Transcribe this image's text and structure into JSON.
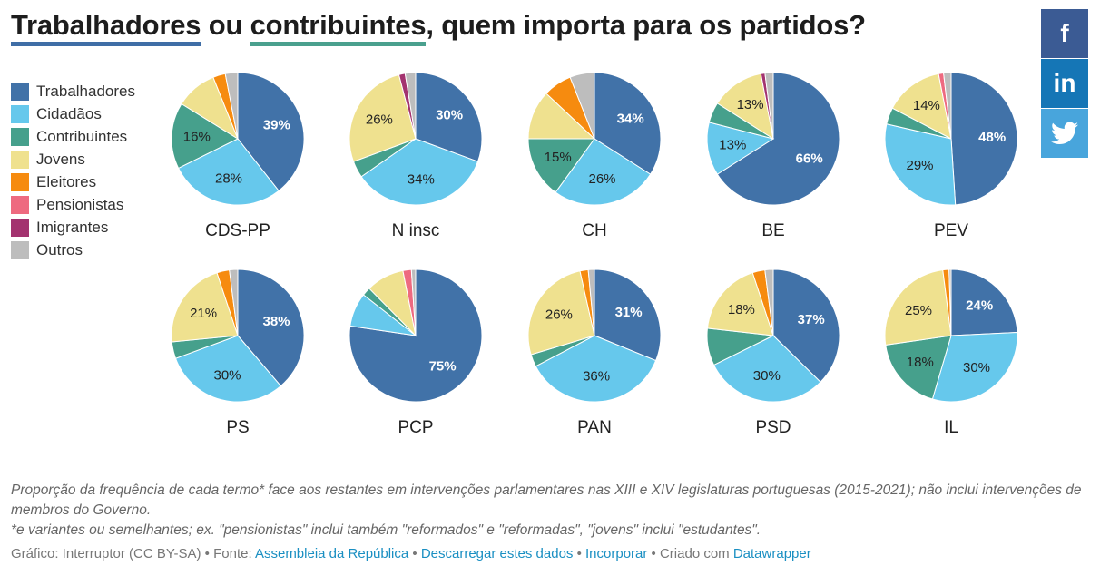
{
  "title": {
    "part1": "Trabalhadores",
    "part2": " ou ",
    "part3": "contribuintes",
    "part4": ", quem importa para os partidos?"
  },
  "legend": [
    {
      "label": "Trabalhadores",
      "color": "#4172a8"
    },
    {
      "label": "Cidadãos",
      "color": "#66c8ec"
    },
    {
      "label": "Contribuintes",
      "color": "#46a08c"
    },
    {
      "label": "Jovens",
      "color": "#efe18f"
    },
    {
      "label": "Eleitores",
      "color": "#f68b0f"
    },
    {
      "label": "Pensionistas",
      "color": "#ee6a80"
    },
    {
      "label": "Imigrantes",
      "color": "#a3336f"
    },
    {
      "label": "Outros",
      "color": "#bdbdbd"
    }
  ],
  "social": {
    "facebook": "f",
    "linkedin": "in",
    "twitter": "twitter-bird-icon"
  },
  "chart_data": [
    {
      "type": "pie",
      "title": "CDS-PP",
      "categories": [
        "Trabalhadores",
        "Cidadãos",
        "Contribuintes",
        "Jovens",
        "Eleitores",
        "Pensionistas",
        "Imigrantes",
        "Outros"
      ],
      "values": [
        39,
        28,
        16,
        10,
        3,
        0,
        0,
        3
      ],
      "labels": [
        "39%",
        "28%",
        "16%",
        "",
        "",
        "",
        "",
        ""
      ]
    },
    {
      "type": "pie",
      "title": "N insc",
      "categories": [
        "Trabalhadores",
        "Cidadãos",
        "Contribuintes",
        "Jovens",
        "Eleitores",
        "Pensionistas",
        "Imigrantes",
        "Outros"
      ],
      "values": [
        30,
        34,
        4,
        26,
        0,
        0,
        1.5,
        2.5
      ],
      "labels": [
        "30%",
        "34%",
        "",
        "26%",
        "",
        "",
        "",
        ""
      ]
    },
    {
      "type": "pie",
      "title": "CH",
      "categories": [
        "Trabalhadores",
        "Cidadãos",
        "Contribuintes",
        "Jovens",
        "Eleitores",
        "Pensionistas",
        "Imigrantes",
        "Outros"
      ],
      "values": [
        34,
        26,
        15,
        12,
        7,
        0,
        0,
        6
      ],
      "labels": [
        "34%",
        "26%",
        "15%",
        "",
        "",
        "",
        "",
        ""
      ]
    },
    {
      "type": "pie",
      "title": "BE",
      "categories": [
        "Trabalhadores",
        "Cidadãos",
        "Contribuintes",
        "Jovens",
        "Eleitores",
        "Pensionistas",
        "Imigrantes",
        "Outros"
      ],
      "values": [
        66,
        13,
        5,
        13,
        0,
        0,
        1,
        2
      ],
      "labels": [
        "66%",
        "13%",
        "",
        "13%",
        "",
        "",
        "",
        ""
      ]
    },
    {
      "type": "pie",
      "title": "PEV",
      "categories": [
        "Trabalhadores",
        "Cidadãos",
        "Contribuintes",
        "Jovens",
        "Eleitores",
        "Pensionistas",
        "Imigrantes",
        "Outros"
      ],
      "values": [
        48,
        29,
        4,
        14,
        0,
        1.2,
        0,
        1.8
      ],
      "labels": [
        "48%",
        "29%",
        "",
        "14%",
        "",
        "",
        "",
        ""
      ]
    },
    {
      "type": "pie",
      "title": "PS",
      "categories": [
        "Trabalhadores",
        "Cidadãos",
        "Contribuintes",
        "Jovens",
        "Eleitores",
        "Pensionistas",
        "Imigrantes",
        "Outros"
      ],
      "values": [
        38,
        30,
        4,
        21,
        3,
        0,
        0,
        2
      ],
      "labels": [
        "38%",
        "30%",
        "",
        "21%",
        "",
        "",
        "",
        ""
      ]
    },
    {
      "type": "pie",
      "title": "PCP",
      "categories": [
        "Trabalhadores",
        "Cidadãos",
        "Contribuintes",
        "Jovens",
        "Eleitores",
        "Pensionistas",
        "Imigrantes",
        "Outros"
      ],
      "values": [
        75,
        8,
        2,
        9,
        0,
        2,
        0,
        1
      ],
      "labels": [
        "75%",
        "",
        "",
        "",
        "",
        "",
        "",
        ""
      ]
    },
    {
      "type": "pie",
      "title": "PAN",
      "categories": [
        "Trabalhadores",
        "Cidadãos",
        "Contribuintes",
        "Jovens",
        "Eleitores",
        "Pensionistas",
        "Imigrantes",
        "Outros"
      ],
      "values": [
        31,
        36,
        3,
        26,
        2,
        0,
        0,
        1.5
      ],
      "labels": [
        "31%",
        "36%",
        "",
        "26%",
        "",
        "",
        "",
        ""
      ]
    },
    {
      "type": "pie",
      "title": "PSD",
      "categories": [
        "Trabalhadores",
        "Cidadãos",
        "Contribuintes",
        "Jovens",
        "Eleitores",
        "Pensionistas",
        "Imigrantes",
        "Outros"
      ],
      "values": [
        37,
        30,
        9,
        18,
        3,
        0,
        0,
        2
      ],
      "labels": [
        "37%",
        "30%",
        "",
        "18%",
        "",
        "",
        "",
        ""
      ]
    },
    {
      "type": "pie",
      "title": "IL",
      "categories": [
        "Trabalhadores",
        "Cidadãos",
        "Contribuintes",
        "Jovens",
        "Eleitores",
        "Pensionistas",
        "Imigrantes",
        "Outros"
      ],
      "values": [
        24,
        30,
        18,
        25,
        1.5,
        0,
        0,
        0.5
      ],
      "labels": [
        "24%",
        "30%",
        "18%",
        "25%",
        "",
        "",
        "",
        ""
      ]
    }
  ],
  "notes": {
    "line1": "Proporção da frequência de cada termo* face aos restantes em intervenções parlamentares nas XIII e XIV legislaturas portuguesas (2015-2021); não inclui intervenções de membros do Governo.",
    "line2": "*e variantes ou semelhantes; ex. \"pensionistas\" inclui também \"reformados\" e \"reformadas\", \"jovens\" inclui \"estudantes\"."
  },
  "source": {
    "prefix": "Gráfico: Interruptor (CC BY-SA) • Fonte: ",
    "source_link": "Assembleia da República",
    "sep1": " • ",
    "download_link": "Descarregar estes dados",
    "sep2": " • ",
    "embed_link": "Incorporar",
    "sep3": " • Criado com ",
    "dw_link": "Datawrapper"
  }
}
